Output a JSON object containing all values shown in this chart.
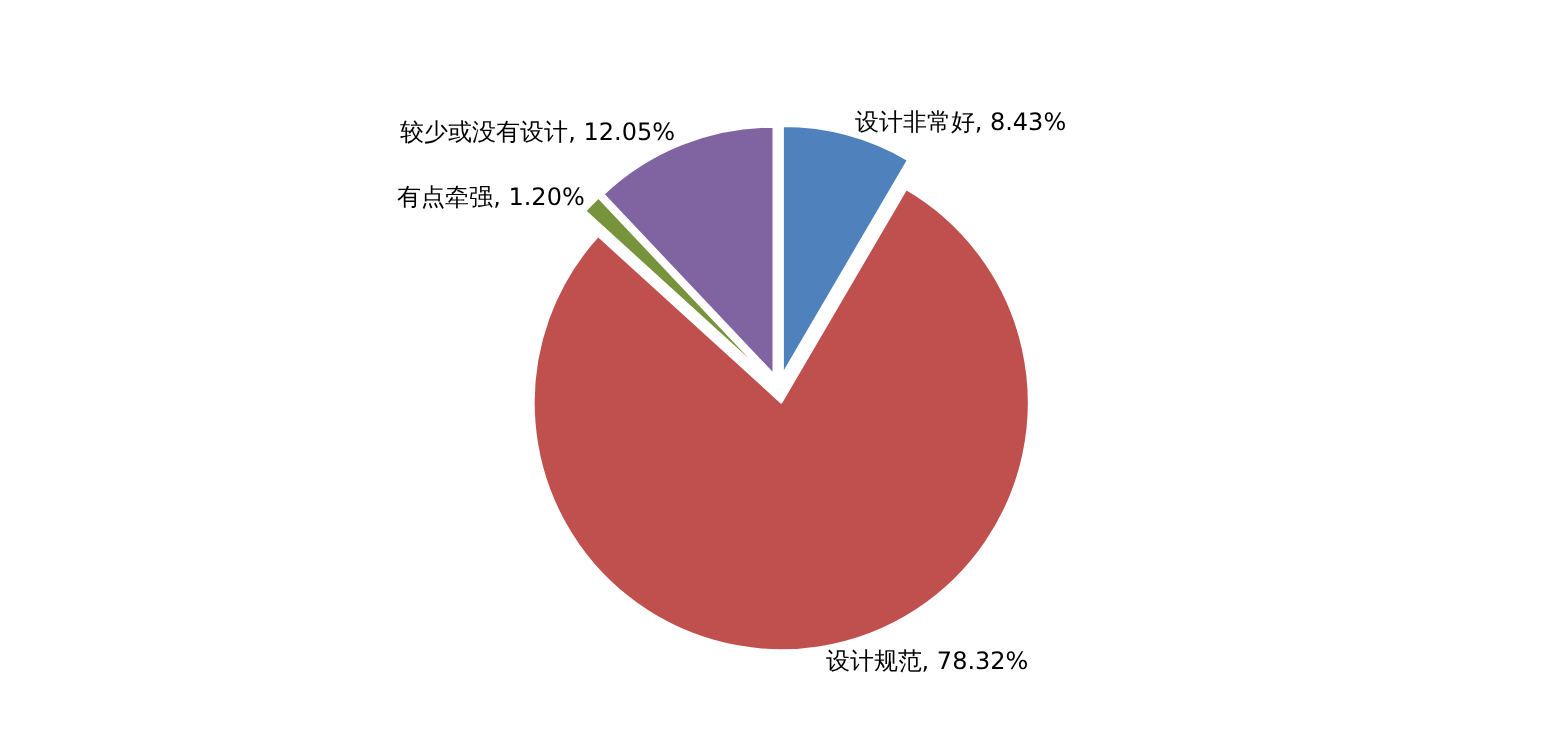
{
  "chart_data": {
    "type": "pie",
    "categories": [
      "设计非常好",
      "设计规范",
      "有点牵强",
      "较少或没有设计"
    ],
    "values": [
      8.43,
      78.32,
      1.2,
      12.05
    ],
    "value_labels": [
      "8.43%",
      "78.32%",
      "1.20%",
      "12.05%"
    ],
    "colors": [
      "#4f81bd",
      "#c0504d",
      "#77933c",
      "#8064a2"
    ],
    "legend": false
  }
}
